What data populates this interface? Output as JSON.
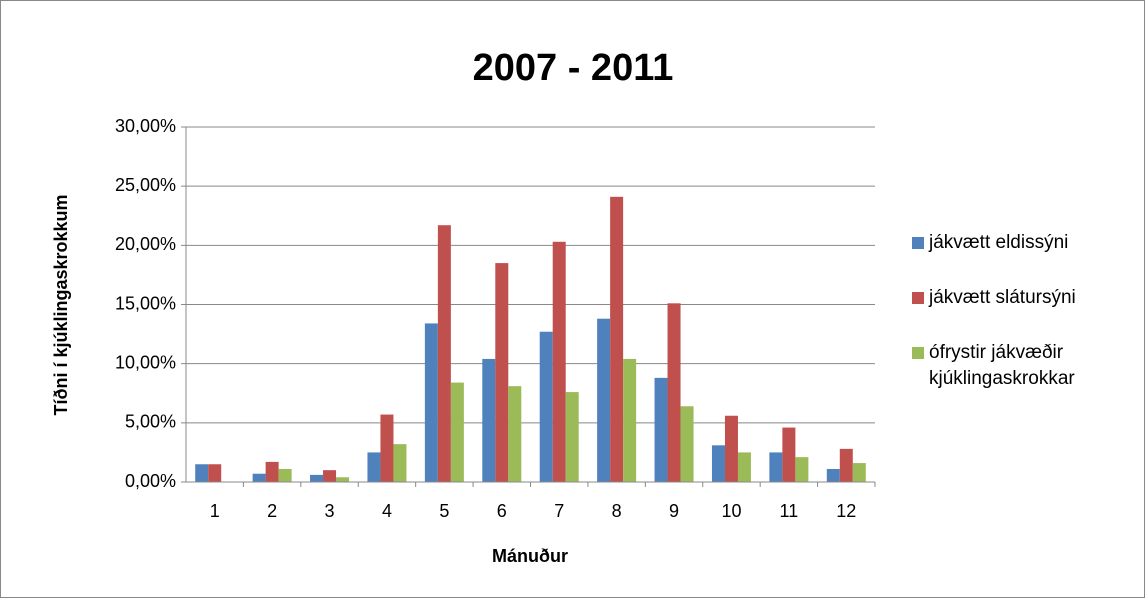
{
  "chart_data": {
    "type": "bar",
    "title": "2007 - 2011",
    "x_label": "Mánuður",
    "y_label": "Tíðni í kjúklingaskrokkum",
    "categories": [
      "1",
      "2",
      "3",
      "4",
      "5",
      "6",
      "7",
      "8",
      "9",
      "10",
      "11",
      "12"
    ],
    "series": [
      {
        "name": "jákvætt eldissýni",
        "color": "#4f81bd",
        "values": [
          1.5,
          0.7,
          0.6,
          2.5,
          13.4,
          10.4,
          12.7,
          13.8,
          8.8,
          3.1,
          2.5,
          1.1
        ]
      },
      {
        "name": "jákvætt slátursýni",
        "color": "#c0504d",
        "values": [
          1.5,
          1.7,
          1.0,
          5.7,
          21.7,
          18.5,
          20.3,
          24.1,
          15.1,
          5.6,
          4.6,
          2.8
        ]
      },
      {
        "name": "ófrystir jákvæðir kjúklingaskrokkar",
        "color": "#9bbb59",
        "values": [
          0,
          1.1,
          0.4,
          3.2,
          8.4,
          8.1,
          7.6,
          10.4,
          6.4,
          2.5,
          2.1,
          1.6
        ]
      }
    ],
    "ylim": [
      0,
      30
    ],
    "yticks": [
      {
        "value": 0,
        "label": "0,00%"
      },
      {
        "value": 5,
        "label": "5,00%"
      },
      {
        "value": 10,
        "label": "10,00%"
      },
      {
        "value": 15,
        "label": "15,00%"
      },
      {
        "value": 20,
        "label": "20,00%"
      },
      {
        "value": 25,
        "label": "25,00%"
      },
      {
        "value": 30,
        "label": "30,00%"
      }
    ],
    "grid": true,
    "legend": "right"
  }
}
